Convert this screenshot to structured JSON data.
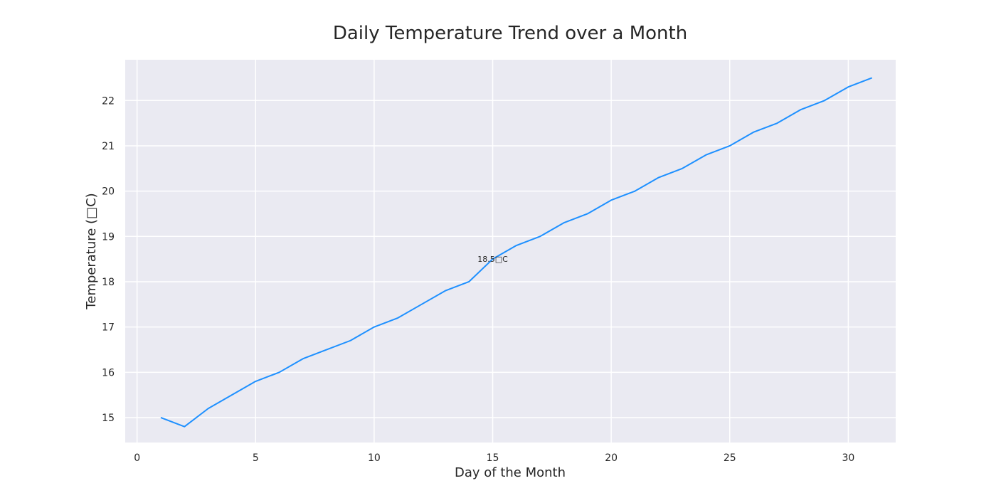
{
  "chart_data": {
    "type": "line",
    "title": "Daily Temperature Trend over a Month",
    "xlabel": "Day of the Month",
    "ylabel": "Temperature (□C)",
    "xlim": [
      -0.5,
      32.0
    ],
    "ylim": [
      14.45,
      22.9
    ],
    "xticks": [
      0,
      5,
      10,
      15,
      20,
      25,
      30
    ],
    "yticks": [
      15,
      16,
      17,
      18,
      19,
      20,
      21,
      22
    ],
    "grid": true,
    "series": [
      {
        "color": "#1e90ff",
        "x": [
          1,
          2,
          3,
          4,
          5,
          6,
          7,
          8,
          9,
          10,
          11,
          12,
          13,
          14,
          15,
          16,
          17,
          18,
          19,
          20,
          21,
          22,
          23,
          24,
          25,
          26,
          27,
          28,
          29,
          30,
          31
        ],
        "y": [
          15.0,
          14.8,
          15.2,
          15.5,
          15.8,
          16.0,
          16.3,
          16.5,
          16.7,
          17.0,
          17.2,
          17.5,
          17.8,
          18.0,
          18.5,
          18.8,
          19.0,
          19.3,
          19.5,
          19.8,
          20.0,
          20.3,
          20.5,
          20.8,
          21.0,
          21.3,
          21.5,
          21.8,
          22.0,
          22.3,
          22.5
        ]
      }
    ],
    "annotations": [
      {
        "x": 15,
        "y": 18.5,
        "text": "18.5□C"
      }
    ],
    "style": {
      "background": "#eaeaf2",
      "grid_color": "#ffffff"
    }
  }
}
